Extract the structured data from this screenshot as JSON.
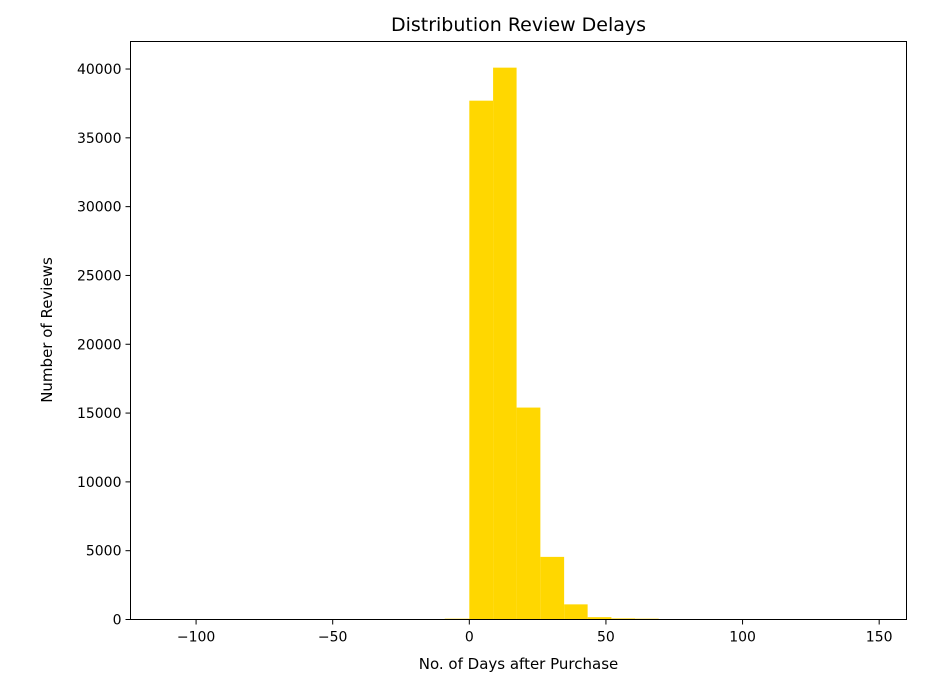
{
  "chart_data": {
    "type": "bar",
    "title": "Distribution Review Delays",
    "xlabel": "No. of Days after Purchase",
    "ylabel": "Number of Reviews",
    "xlim": [
      -124,
      160
    ],
    "ylim": [
      0,
      42000
    ],
    "xticks": [
      -100,
      -50,
      0,
      50,
      100,
      150
    ],
    "xtick_labels": [
      "−100",
      "−50",
      "0",
      "50",
      "100",
      "150"
    ],
    "yticks": [
      0,
      5000,
      10000,
      15000,
      20000,
      25000,
      30000,
      35000,
      40000
    ],
    "ytick_labels": [
      "0",
      "5000",
      "10000",
      "15000",
      "20000",
      "25000",
      "30000",
      "35000",
      "40000"
    ],
    "bins": [
      {
        "x0": -9,
        "x1": 0,
        "value": 60
      },
      {
        "x0": 0,
        "x1": 8.7,
        "value": 37700
      },
      {
        "x0": 8.7,
        "x1": 17.3,
        "value": 40100
      },
      {
        "x0": 17.3,
        "x1": 26,
        "value": 15400
      },
      {
        "x0": 26,
        "x1": 34.7,
        "value": 4550
      },
      {
        "x0": 34.7,
        "x1": 43.3,
        "value": 1100
      },
      {
        "x0": 43.3,
        "x1": 52,
        "value": 170
      },
      {
        "x0": 52,
        "x1": 60.7,
        "value": 80
      },
      {
        "x0": 60.7,
        "x1": 69.3,
        "value": 60
      }
    ],
    "bar_color": "#FFD700",
    "grid": false,
    "legend": false
  }
}
